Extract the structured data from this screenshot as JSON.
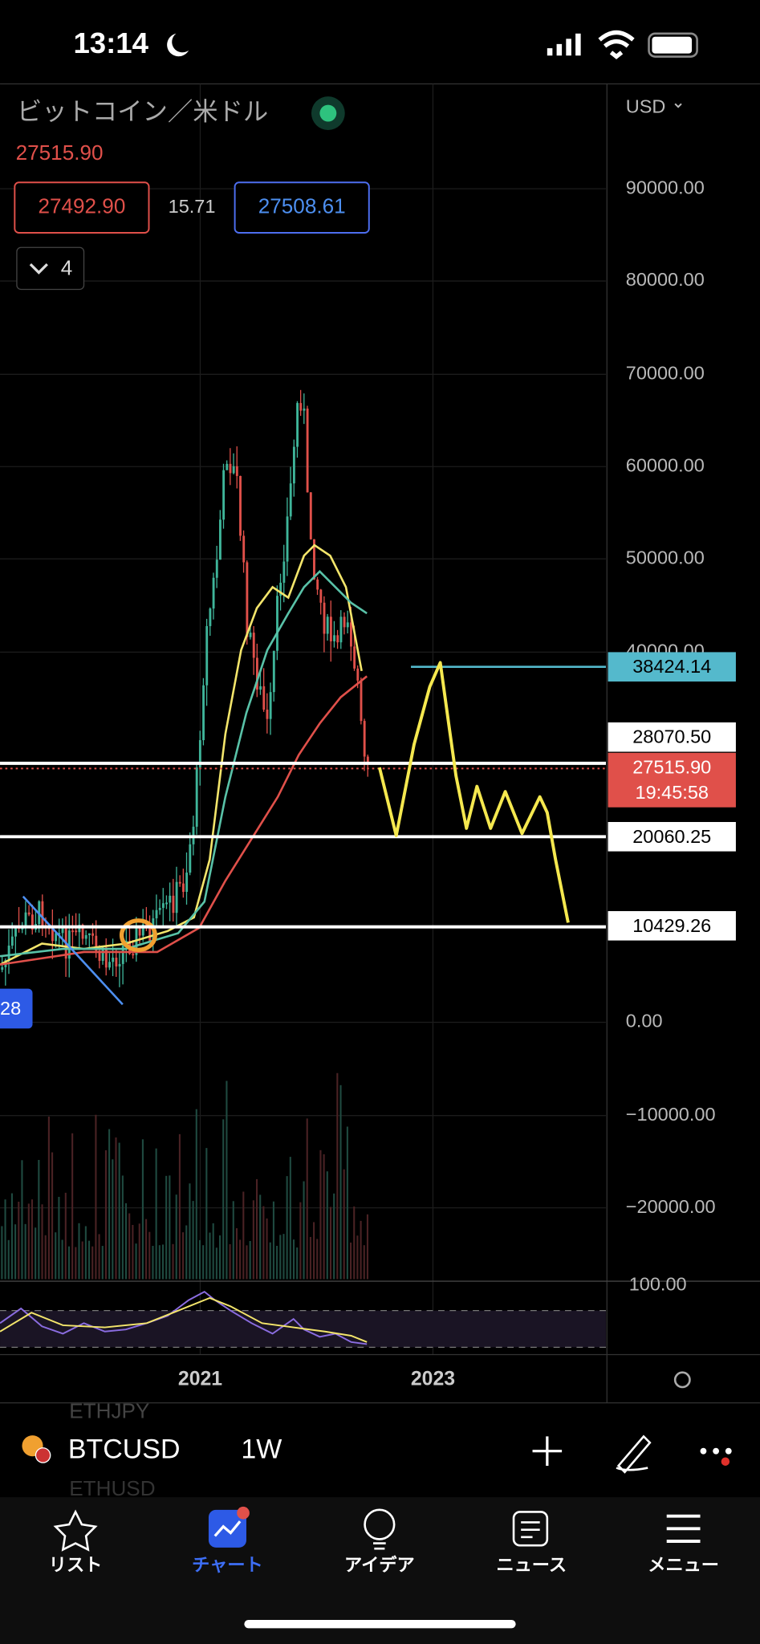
{
  "status_bar": {
    "time": "13:14"
  },
  "header": {
    "symbol_name": "ビットコイン／米ドル",
    "price": "27515.90",
    "bid": "27492.90",
    "spread": "15.71",
    "ask": "27508.61",
    "indicators_count": "4",
    "currency": "USD"
  },
  "price_axis": [
    "90000.00",
    "80000.00",
    "70000.00",
    "60000.00",
    "50000.00",
    "40000.00",
    "0.00",
    "−10000.00",
    "−20000.00"
  ],
  "price_tags": {
    "line_1": "38424.14",
    "line_2": "28070.50",
    "last_price": "27515.90",
    "countdown": "19:45:58",
    "line_3": "20060.25",
    "line_4": "10429.26",
    "left_tag": "28"
  },
  "rsi_axis": "100.00",
  "time_axis": [
    "2021",
    "2023"
  ],
  "toolbar": {
    "symbol": "BTCUSD",
    "interval": "1W",
    "list_above": "ETHJPY",
    "list_below": "ETHUSD"
  },
  "tab_bar": [
    "リスト",
    "チャート",
    "アイデア",
    "ニュース",
    "メニュー"
  ]
}
